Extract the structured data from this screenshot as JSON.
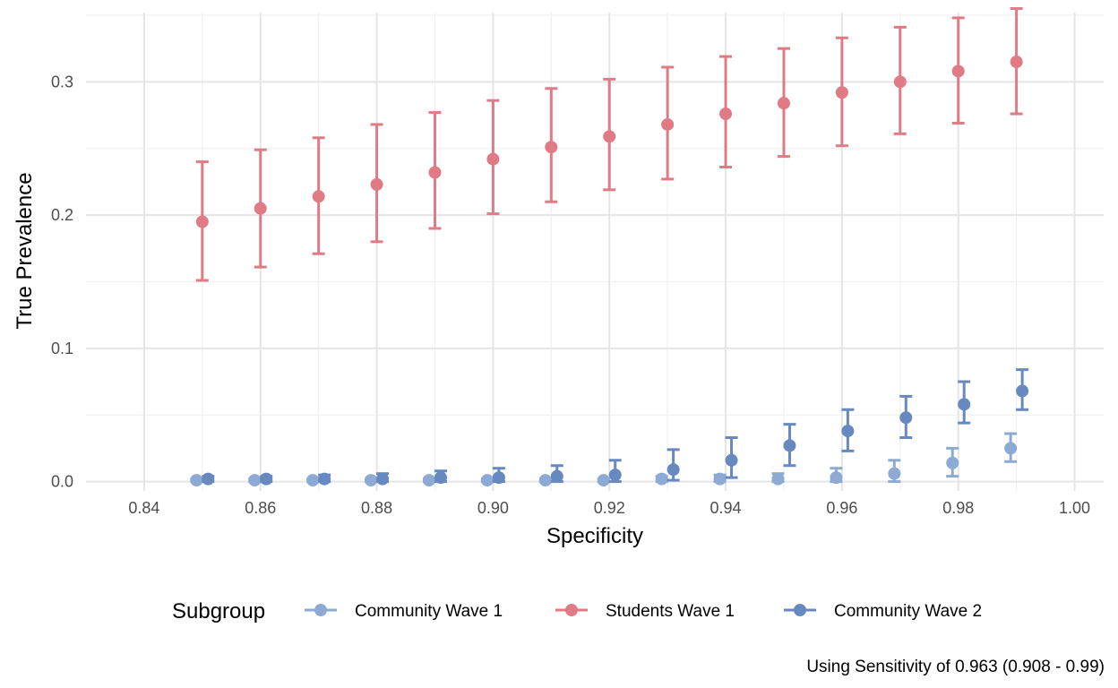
{
  "chart_data": {
    "type": "scatter",
    "xlabel": "Specificity",
    "ylabel": "True Prevalence",
    "caption": "Using Sensitivity of 0.963 (0.908 - 0.99)",
    "xlim": [
      0.83,
      1.005
    ],
    "ylim": [
      -0.007,
      0.352
    ],
    "x_ticks": [
      0.84,
      0.86,
      0.88,
      0.9,
      0.92,
      0.94,
      0.96,
      0.98,
      1.0
    ],
    "x_tick_labels": [
      "0.84",
      "0.86",
      "0.88",
      "0.90",
      "0.92",
      "0.94",
      "0.96",
      "0.98",
      "1.00"
    ],
    "y_ticks": [
      0.0,
      0.1,
      0.2,
      0.3
    ],
    "y_tick_labels": [
      "0.0",
      "0.1",
      "0.2",
      "0.3"
    ],
    "grid": true,
    "legend": {
      "title": "Subgroup",
      "position": "bottom"
    },
    "series": [
      {
        "name": "Community Wave 1",
        "color": "#8caad4",
        "x": [
          0.849,
          0.859,
          0.869,
          0.879,
          0.889,
          0.899,
          0.909,
          0.919,
          0.929,
          0.939,
          0.949,
          0.959,
          0.969,
          0.979,
          0.989
        ],
        "y": [
          0.001,
          0.001,
          0.001,
          0.001,
          0.001,
          0.001,
          0.001,
          0.001,
          0.002,
          0.002,
          0.002,
          0.003,
          0.006,
          0.014,
          0.025
        ],
        "lower": [
          0.0,
          0.0,
          0.0,
          0.0,
          0.0,
          0.0,
          0.0,
          0.0,
          0.0,
          0.0,
          0.0,
          0.0,
          0.0,
          0.004,
          0.015
        ],
        "upper": [
          0.002,
          0.002,
          0.002,
          0.002,
          0.002,
          0.002,
          0.002,
          0.002,
          0.004,
          0.005,
          0.006,
          0.01,
          0.016,
          0.025,
          0.036
        ]
      },
      {
        "name": "Students Wave 1",
        "color": "#e07b86",
        "x": [
          0.85,
          0.86,
          0.87,
          0.88,
          0.89,
          0.9,
          0.91,
          0.92,
          0.93,
          0.94,
          0.95,
          0.96,
          0.97,
          0.98,
          0.99
        ],
        "y": [
          0.195,
          0.205,
          0.214,
          0.223,
          0.232,
          0.242,
          0.251,
          0.259,
          0.268,
          0.276,
          0.284,
          0.292,
          0.3,
          0.308,
          0.315
        ],
        "lower": [
          0.151,
          0.161,
          0.171,
          0.18,
          0.19,
          0.201,
          0.21,
          0.219,
          0.227,
          0.236,
          0.244,
          0.252,
          0.261,
          0.269,
          0.276
        ],
        "upper": [
          0.24,
          0.249,
          0.258,
          0.268,
          0.277,
          0.286,
          0.295,
          0.302,
          0.311,
          0.319,
          0.325,
          0.333,
          0.341,
          0.348,
          0.355
        ]
      },
      {
        "name": "Community Wave 2",
        "color": "#6789bf",
        "x": [
          0.851,
          0.861,
          0.871,
          0.881,
          0.891,
          0.901,
          0.911,
          0.921,
          0.931,
          0.941,
          0.951,
          0.961,
          0.971,
          0.981,
          0.991
        ],
        "y": [
          0.002,
          0.002,
          0.002,
          0.002,
          0.003,
          0.003,
          0.004,
          0.005,
          0.009,
          0.016,
          0.027,
          0.038,
          0.048,
          0.058,
          0.068
        ],
        "lower": [
          0.0,
          0.0,
          0.0,
          0.0,
          0.0,
          0.0,
          0.0,
          0.0,
          0.001,
          0.003,
          0.012,
          0.023,
          0.033,
          0.044,
          0.054
        ],
        "upper": [
          0.004,
          0.004,
          0.005,
          0.006,
          0.008,
          0.01,
          0.012,
          0.016,
          0.024,
          0.033,
          0.043,
          0.054,
          0.064,
          0.075,
          0.084
        ]
      }
    ]
  }
}
